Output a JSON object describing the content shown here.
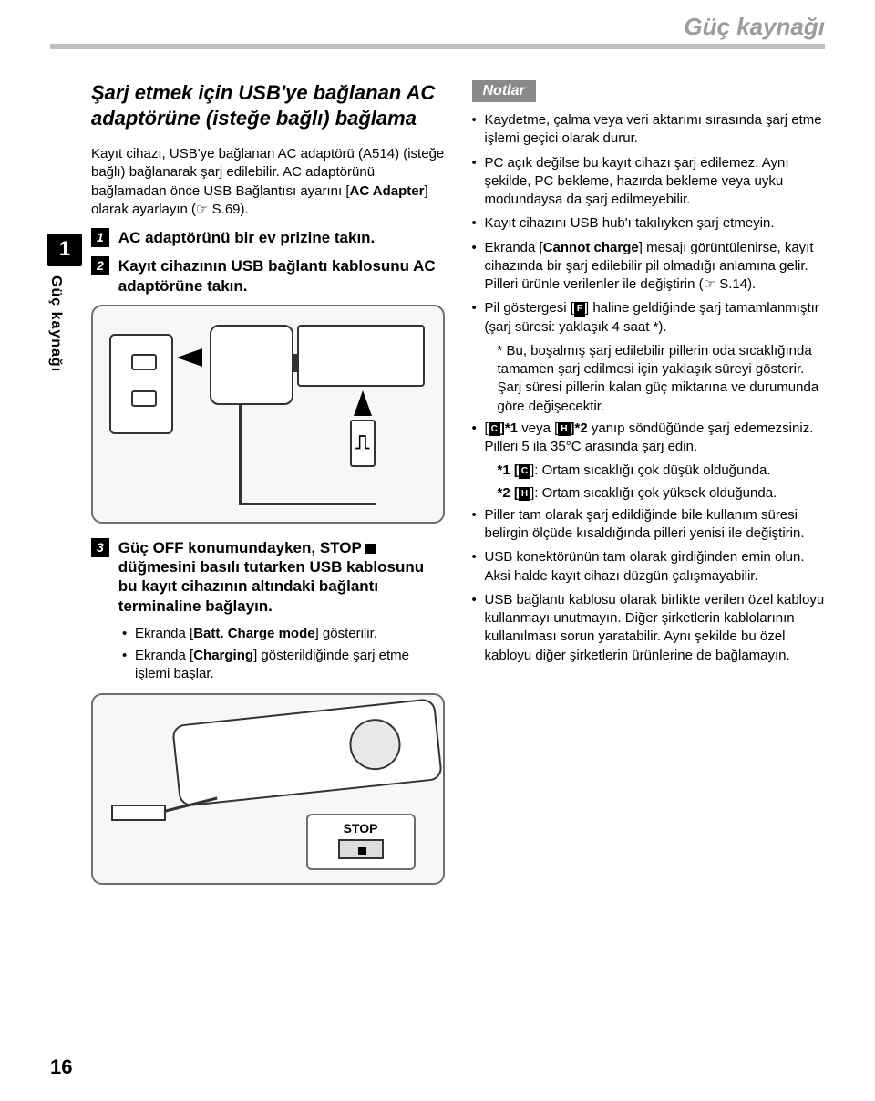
{
  "header": {
    "running_title": "Güç kaynağı"
  },
  "side_tab": {
    "num": "1",
    "text": "Güç kaynağı"
  },
  "page_number": "16",
  "left": {
    "heading": "Şarj etmek için USB'ye bağlanan AC adaptörüne (isteğe bağlı) bağlama",
    "intro_pre": "Kayıt cihazı, USB'ye bağlanan AC adaptörü (A514) (isteğe bağlı) bağlanarak şarj edilebilir. AC adaptörünü bağlamadan önce USB Bağlantısı ayarını [",
    "intro_bold": "AC Adapter",
    "intro_post": "] olarak ayarlayın (☞ S.69).",
    "step1": {
      "num": "1",
      "text": "AC adaptörünü bir ev prizine takın."
    },
    "step2": {
      "num": "2",
      "text": "Kayıt cihazının USB bağlantı kablosunu AC adaptörüne takın."
    },
    "step3": {
      "num": "3",
      "text_pre": "Güç OFF konumundayken, STOP",
      "text_post": " düğmesini basılı tutarken USB kablosunu bu kayıt cihazının altındaki bağlantı terminaline bağlayın.",
      "b1_pre": "Ekranda [",
      "b1_bold": "Batt. Charge mode",
      "b1_post": "] gösterilir.",
      "b2_pre": "Ekranda [",
      "b2_bold": "Charging",
      "b2_post": "] gösterildiğinde şarj etme işlemi başlar."
    },
    "fig2_label": "STOP"
  },
  "right": {
    "notes_title": "Notlar",
    "n1": "Kaydetme, çalma veya veri aktarımı sırasında şarj etme işlemi geçici olarak durur.",
    "n2": "PC açık değilse bu kayıt cihazı şarj edilemez. Aynı şekilde, PC bekleme, hazırda bekleme veya uyku modundaysa da şarj edilmeyebilir.",
    "n3": "Kayıt cihazını USB hub'ı takılıyken şarj etmeyin.",
    "n4_pre": "Ekranda [",
    "n4_bold": "Cannot charge",
    "n4_post": "] mesajı görüntülenirse, kayıt cihazında bir şarj edilebilir pil olmadığı anlamına gelir. Pilleri ürünle verilenler ile değiştirin (☞ S.14).",
    "n5_pre": "Pil göstergesi [",
    "n5_post": "] haline geldiğinde şarj tamamlanmıştır (şarj süresi: yaklaşık 4 saat *).",
    "n5_sub": "* Bu, boşalmış şarj edilebilir pillerin oda sıcaklığında tamamen şarj edilmesi için yaklaşık süreyi gösterir. Şarj süresi pillerin kalan güç miktarına ve durumunda göre değişecektir.",
    "n6_p1a": "[",
    "n6_p1b": "]*1",
    "n6_mid": " veya [",
    "n6_p2b": "]*2",
    "n6_text": " yanıp söndüğünde şarj edemezsiniz. Pilleri 5 ila 35°C arasında şarj edin.",
    "n6_s1_pre": "*1 [",
    "n6_s1_post": "]: Ortam sıcaklığı çok düşük olduğunda.",
    "n6_s2_pre": "*2 [",
    "n6_s2_post": "]: Ortam sıcaklığı çok yüksek olduğunda.",
    "n7": "Piller tam olarak şarj edildiğinde bile kullanım süresi belirgin ölçüde kısaldığında pilleri yenisi ile değiştirin.",
    "n8": "USB konektörünün tam olarak girdiğinden emin olun. Aksi halde kayıt cihazı düzgün çalışmayabilir.",
    "n9": "USB bağlantı kablosu olarak birlikte verilen özel kabloyu kullanmayı unutmayın. Diğer şirketlerin kablolarının kullanılması sorun yaratabilir. Aynı şekilde bu özel kabloyu diğer şirketlerin ürünlerine de bağlamayın."
  },
  "badges": {
    "F": "F",
    "C": "C",
    "H": "H"
  }
}
